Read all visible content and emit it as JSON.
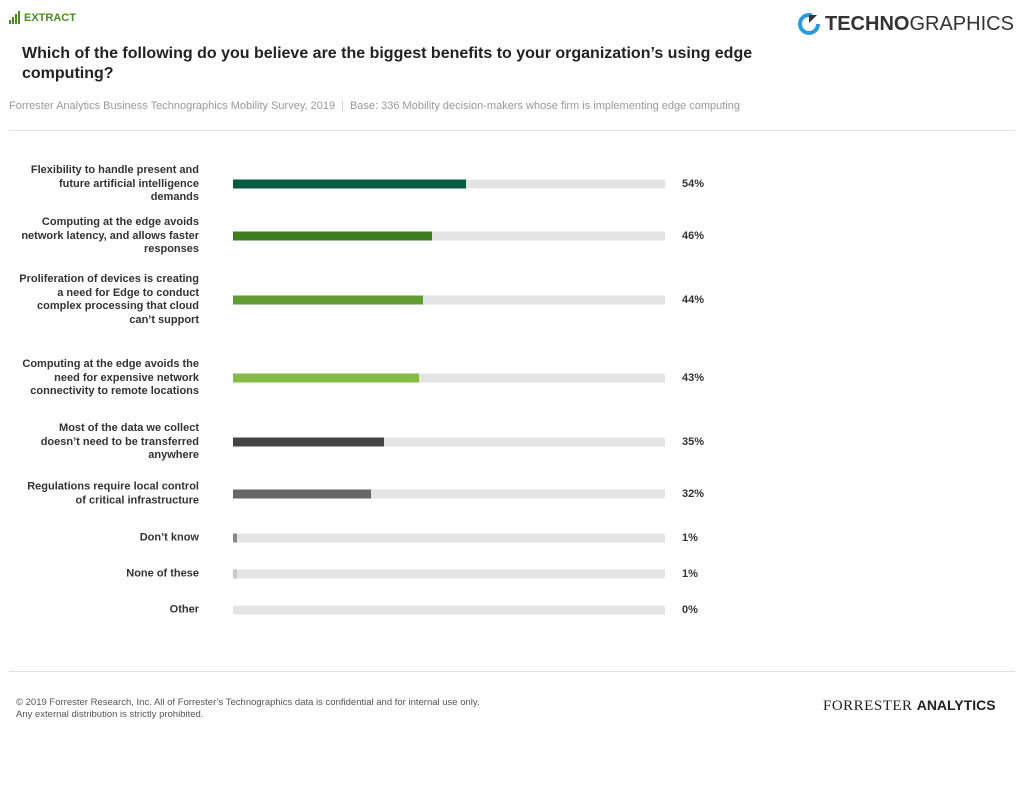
{
  "header": {
    "badge": "EXTRACT",
    "brand_bold": "TECHNO",
    "brand_light": "GRAPHICS"
  },
  "chart_data": {
    "type": "bar",
    "orientation": "horizontal",
    "title": "Which of the following do you believe are the biggest benefits to your organization’s using edge computing?",
    "source": "Forrester Analytics Business Technographics Mobility Survey, 2019",
    "base": "Base: 336 Mobility decision-makers whose firm is implementing edge computing",
    "xlim": [
      0,
      100
    ],
    "categories": [
      "Flexibility to handle present and future artificial intelligence demands",
      "Computing at the edge avoids network latency, and allows faster responses",
      "Proliferation of devices is creating a need for Edge to conduct complex processing that cloud can’t support",
      "Computing at the edge avoids the need for expensive network connectivity to remote locations",
      "Most of the data we collect doesn’t need to be transferred anywhere",
      "Regulations require local control of critical infrastructure",
      "Don’t know",
      "None of these",
      "Other"
    ],
    "values": [
      54,
      46,
      44,
      43,
      35,
      32,
      1,
      1,
      0
    ],
    "value_labels": [
      "54%",
      "46%",
      "44%",
      "43%",
      "35%",
      "32%",
      "1%",
      "1%",
      "0%"
    ],
    "colors": [
      "#005a3e",
      "#3e7d1f",
      "#629b34",
      "#86bb47",
      "#444444",
      "#666666",
      "#888888",
      "#c8c8c8",
      "#c8c8c8"
    ]
  },
  "footer": {
    "copyright": "© 2019 Forrester Research, Inc. All of Forrester’s Technographics data is confidential and for internal use only.",
    "notice": "Any external distribution is strictly prohibited.",
    "logo_a": "FORRESTER",
    "logo_b": "ANALYTICS"
  }
}
